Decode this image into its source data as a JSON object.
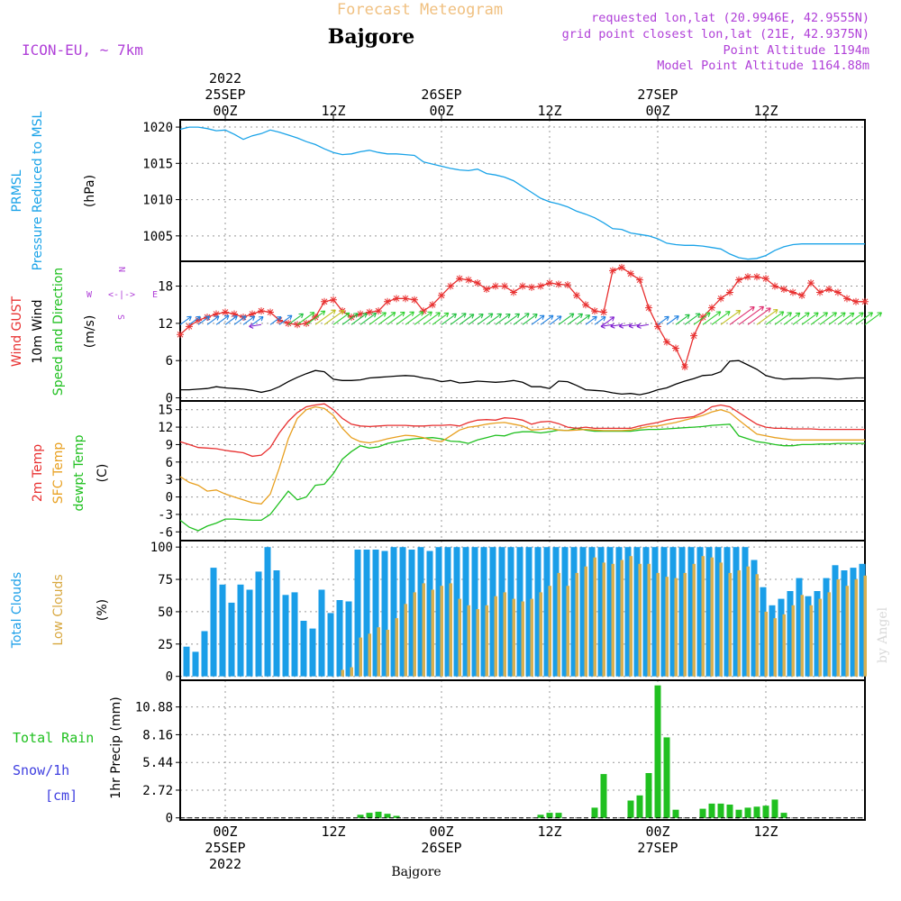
{
  "header": {
    "subtitle": "Forecast Meteogram",
    "station": "Bajgore",
    "model": "ICON-EU, ~ 7km",
    "requested": "requested lon,lat (20.9946E, 42.9555N)",
    "grid_point": "grid point closest lon,lat (21E, 42.9375N)",
    "point_altitude": "Point Altitude 1194m",
    "model_altitude": "Model Point Altitude 1164.88m",
    "footer_station": "Bajgore",
    "watermark": "by Angel"
  },
  "time_axis": {
    "top_year": "2022",
    "ticks": [
      {
        "hour": 0,
        "label": "00Z",
        "day": "25SEP",
        "year": "2022"
      },
      {
        "hour": 12,
        "label": "12Z",
        "day": "",
        "year": ""
      },
      {
        "hour": 24,
        "label": "00Z",
        "day": "26SEP",
        "year": ""
      },
      {
        "hour": 36,
        "label": "12Z",
        "day": "",
        "year": ""
      },
      {
        "hour": 48,
        "label": "00Z",
        "day": "27SEP",
        "year": ""
      },
      {
        "hour": 60,
        "label": "12Z",
        "day": "",
        "year": ""
      }
    ],
    "range_hours": [
      -5,
      71
    ]
  },
  "colors": {
    "pressure": "#1aa3e8",
    "gust": "#e83030",
    "wind": "#000000",
    "temp": "#e83030",
    "sfc": "#e8a020",
    "dewpt": "#20c020",
    "total_cloud": "#1a9ee8",
    "low_cloud": "#d8b050",
    "precip": "#20c020",
    "snow": "#4040e0",
    "purple": "#b040d8",
    "title_orange": "#f0c080"
  },
  "chart_data": [
    {
      "type": "line",
      "panel": "pressure",
      "ylabel_1": "PRMSL",
      "ylabel_2": "Pressure Reduced to MSL",
      "unit": "(hPa)",
      "ylim": [
        1001.5,
        1021
      ],
      "yticks": [
        "1005",
        "1010",
        "1015",
        "1020"
      ],
      "ytick_values": [
        1005,
        1010,
        1015,
        1020
      ],
      "x": [
        -5,
        -4,
        -3,
        -2,
        -1,
        0,
        1,
        2,
        3,
        4,
        5,
        6,
        7,
        8,
        9,
        10,
        11,
        12,
        13,
        14,
        15,
        16,
        17,
        18,
        19,
        20,
        21,
        22,
        23,
        24,
        25,
        26,
        27,
        28,
        29,
        30,
        31,
        32,
        33,
        34,
        35,
        36,
        37,
        38,
        39,
        40,
        41,
        42,
        43,
        44,
        45,
        46,
        47,
        48,
        49,
        50,
        51,
        52,
        53,
        54,
        55,
        56,
        57,
        58,
        59,
        60,
        61,
        62,
        63,
        64,
        65,
        66,
        67,
        68,
        69,
        70,
        71
      ],
      "values": [
        1019.7,
        1020.0,
        1020.0,
        1019.8,
        1019.5,
        1019.6,
        1019.0,
        1018.3,
        1018.8,
        1019.1,
        1019.6,
        1019.3,
        1018.9,
        1018.5,
        1018.0,
        1017.6,
        1017.0,
        1016.5,
        1016.2,
        1016.3,
        1016.6,
        1016.8,
        1016.5,
        1016.3,
        1016.3,
        1016.2,
        1016.1,
        1015.2,
        1014.9,
        1014.6,
        1014.3,
        1014.1,
        1014.0,
        1014.2,
        1013.6,
        1013.4,
        1013.1,
        1012.6,
        1011.8,
        1011.0,
        1010.2,
        1009.7,
        1009.4,
        1009.0,
        1008.4,
        1008.0,
        1007.5,
        1006.8,
        1006.0,
        1005.9,
        1005.4,
        1005.2,
        1005.0,
        1004.6,
        1004.0,
        1003.8,
        1003.7,
        1003.7,
        1003.6,
        1003.4,
        1003.2,
        1002.5,
        1002.0,
        1001.8,
        1001.9,
        1002.3,
        1003.0,
        1003.5,
        1003.8,
        1003.9,
        1003.9,
        1003.9,
        1003.9,
        1003.9,
        1003.9,
        1003.9,
        1003.9
      ]
    },
    {
      "type": "line",
      "panel": "wind",
      "ylabel_1": "Wind GUST",
      "ylabel_2": "10m Wind",
      "ylabel_3": "Speed and Direction",
      "unit": "(m/s)",
      "compass": "N W <-|-> E S",
      "ylim": [
        -0.5,
        22
      ],
      "yticks": [
        "0",
        "6",
        "12",
        "18"
      ],
      "ytick_values": [
        0,
        6,
        12,
        18
      ],
      "x": [
        -5,
        -4,
        -3,
        -2,
        -1,
        0,
        1,
        2,
        3,
        4,
        5,
        6,
        7,
        8,
        9,
        10,
        11,
        12,
        13,
        14,
        15,
        16,
        17,
        18,
        19,
        20,
        21,
        22,
        23,
        24,
        25,
        26,
        27,
        28,
        29,
        30,
        31,
        32,
        33,
        34,
        35,
        36,
        37,
        38,
        39,
        40,
        41,
        42,
        43,
        44,
        45,
        46,
        47,
        48,
        49,
        50,
        51,
        52,
        53,
        54,
        55,
        56,
        57,
        58,
        59,
        60,
        61,
        62,
        63,
        64,
        65,
        66,
        67,
        68,
        69,
        70,
        71
      ],
      "gust": [
        10.2,
        11.5,
        12.5,
        13.0,
        13.5,
        13.8,
        13.5,
        13.0,
        13.5,
        14.0,
        13.8,
        12.5,
        12.0,
        11.8,
        12.0,
        13.0,
        15.5,
        15.8,
        14.0,
        13.0,
        13.5,
        13.8,
        14.0,
        15.5,
        16.0,
        16.0,
        15.8,
        14.0,
        15.0,
        16.5,
        18.0,
        19.2,
        19.0,
        18.5,
        17.5,
        18.0,
        18.0,
        17.0,
        18.0,
        17.8,
        18.0,
        18.5,
        18.3,
        18.2,
        16.5,
        15.0,
        14.0,
        13.8,
        20.5,
        21.0,
        20.0,
        19.0,
        14.5,
        11.5,
        9.0,
        8.0,
        5.0,
        10.0,
        13.0,
        14.5,
        16.0,
        17.0,
        19.0,
        19.5,
        19.5,
        19.2,
        18.0,
        17.5,
        17.0,
        16.5,
        18.5,
        17.0,
        17.5,
        17.0,
        16.0,
        15.5,
        15.5
      ],
      "speed": [
        1.3,
        1.3,
        1.4,
        1.5,
        1.8,
        1.6,
        1.5,
        1.4,
        1.2,
        0.9,
        1.2,
        1.8,
        2.6,
        3.3,
        3.9,
        4.4,
        4.2,
        3.0,
        2.8,
        2.8,
        2.9,
        3.2,
        3.3,
        3.4,
        3.5,
        3.6,
        3.5,
        3.2,
        3.0,
        2.6,
        2.8,
        2.4,
        2.5,
        2.7,
        2.6,
        2.5,
        2.6,
        2.8,
        2.5,
        1.8,
        1.8,
        1.5,
        2.7,
        2.6,
        2.0,
        1.3,
        1.2,
        1.1,
        0.8,
        0.6,
        0.7,
        0.5,
        0.8,
        1.3,
        1.6,
        2.2,
        2.7,
        3.1,
        3.6,
        3.7,
        4.2,
        5.9,
        6.0,
        5.3,
        4.6,
        3.6,
        3.2,
        3.0,
        3.1,
        3.1,
        3.2,
        3.2,
        3.1,
        3.0,
        3.1,
        3.2,
        3.2
      ]
    },
    {
      "type": "line",
      "panel": "temperature",
      "ylabel_1": "2m Temp",
      "ylabel_2": "SFC Temp",
      "ylabel_3": "dewpt Temp",
      "unit": "(C)",
      "ylim": [
        -7.5,
        16.5
      ],
      "yticks": [
        "-6",
        "-3",
        "0",
        "3",
        "6",
        "9",
        "12",
        "15"
      ],
      "ytick_values": [
        -6,
        -3,
        0,
        3,
        6,
        9,
        12,
        15
      ],
      "x": [
        -5,
        -4,
        -3,
        -2,
        -1,
        0,
        1,
        2,
        3,
        4,
        5,
        6,
        7,
        8,
        9,
        10,
        11,
        12,
        13,
        14,
        15,
        16,
        17,
        18,
        19,
        20,
        21,
        22,
        23,
        24,
        25,
        26,
        27,
        28,
        29,
        30,
        31,
        32,
        33,
        34,
        35,
        36,
        37,
        38,
        39,
        40,
        41,
        42,
        43,
        44,
        45,
        46,
        47,
        48,
        49,
        50,
        51,
        52,
        53,
        54,
        55,
        56,
        57,
        58,
        59,
        60,
        61,
        62,
        63,
        64,
        65,
        66,
        67,
        68,
        69,
        70,
        71
      ],
      "temp_2m": [
        9.5,
        9.0,
        8.5,
        8.4,
        8.3,
        8.0,
        7.8,
        7.6,
        7.0,
        7.2,
        8.5,
        11.0,
        13.0,
        14.5,
        15.5,
        15.8,
        16.0,
        15.0,
        13.5,
        12.5,
        12.2,
        12.1,
        12.2,
        12.3,
        12.3,
        12.3,
        12.2,
        12.2,
        12.3,
        12.3,
        12.4,
        12.2,
        12.8,
        13.2,
        13.3,
        13.2,
        13.6,
        13.5,
        13.2,
        12.5,
        12.9,
        13.0,
        12.6,
        12.0,
        11.8,
        12.0,
        11.8,
        11.8,
        11.8,
        11.8,
        11.8,
        12.2,
        12.5,
        12.8,
        13.2,
        13.5,
        13.6,
        13.8,
        14.5,
        15.5,
        15.8,
        15.5,
        14.5,
        13.5,
        12.5,
        12.0,
        11.8,
        11.8,
        11.7,
        11.7,
        11.7,
        11.6,
        11.6,
        11.6,
        11.6,
        11.6,
        11.6
      ],
      "temp_sfc": [
        3.5,
        2.5,
        2.0,
        1.0,
        1.2,
        0.5,
        0.0,
        -0.5,
        -1.0,
        -1.2,
        0.5,
        5.0,
        10.0,
        13.5,
        15.0,
        15.5,
        15.2,
        14.0,
        11.8,
        10.2,
        9.5,
        9.3,
        9.6,
        10.0,
        10.3,
        10.6,
        10.5,
        10.2,
        9.7,
        9.5,
        10.5,
        11.5,
        12.0,
        12.2,
        12.5,
        12.7,
        12.8,
        12.5,
        12.2,
        11.5,
        11.6,
        11.8,
        11.5,
        11.4,
        11.5,
        11.6,
        11.5,
        11.4,
        11.4,
        11.4,
        11.5,
        11.8,
        12.1,
        12.2,
        12.5,
        12.8,
        13.2,
        13.6,
        14.0,
        14.6,
        15.0,
        14.5,
        13.2,
        12.0,
        10.8,
        10.5,
        10.2,
        10.0,
        9.8,
        9.8,
        9.8,
        9.8,
        9.8,
        9.8,
        9.8,
        9.8,
        9.8
      ],
      "dewpoint": [
        -4.0,
        -5.2,
        -5.8,
        -5.0,
        -4.5,
        -3.8,
        -3.8,
        -3.9,
        -4.0,
        -4.0,
        -3.0,
        -1.0,
        1.0,
        -0.5,
        0.0,
        2.0,
        2.2,
        4.0,
        6.5,
        7.8,
        8.8,
        8.4,
        8.6,
        9.2,
        9.5,
        9.8,
        10.0,
        10.1,
        10.2,
        10.0,
        9.6,
        9.5,
        9.2,
        9.8,
        10.2,
        10.6,
        10.5,
        11.0,
        11.2,
        11.2,
        11.0,
        11.2,
        11.5,
        11.4,
        11.8,
        11.5,
        11.3,
        11.3,
        11.3,
        11.3,
        11.3,
        11.5,
        11.6,
        11.6,
        11.7,
        11.8,
        11.9,
        12.0,
        12.1,
        12.3,
        12.4,
        12.5,
        10.5,
        10.0,
        9.5,
        9.3,
        9.0,
        8.8,
        8.8,
        9.0,
        9.0,
        9.1,
        9.1,
        9.2,
        9.2,
        9.2,
        9.2
      ]
    },
    {
      "type": "bar",
      "panel": "clouds",
      "ylabel_1": "Total Clouds",
      "ylabel_2": "Low Clouds",
      "unit": "(%)",
      "ylim": [
        -3,
        105
      ],
      "yticks": [
        "0",
        "25",
        "50",
        "75",
        "100"
      ],
      "ytick_values": [
        0,
        25,
        50,
        75,
        100
      ],
      "x": [
        -4,
        -3,
        -2,
        -1,
        0,
        1,
        2,
        3,
        4,
        5,
        6,
        7,
        8,
        9,
        10,
        11,
        12,
        13,
        14,
        15,
        16,
        17,
        18,
        19,
        20,
        21,
        22,
        23,
        24,
        25,
        26,
        27,
        28,
        29,
        30,
        31,
        32,
        33,
        34,
        35,
        36,
        37,
        38,
        39,
        40,
        41,
        42,
        43,
        44,
        45,
        46,
        47,
        48,
        49,
        50,
        51,
        52,
        53,
        54,
        55,
        56,
        57,
        58,
        59,
        60,
        61,
        62,
        63,
        64,
        65,
        66,
        67,
        68,
        69,
        70,
        71
      ],
      "total": [
        23,
        19,
        35,
        84,
        71,
        57,
        71,
        67,
        81,
        100,
        82,
        63,
        65,
        43,
        37,
        67,
        49,
        59,
        58,
        98,
        98,
        98,
        97,
        100,
        100,
        98,
        100,
        97,
        100,
        100,
        100,
        100,
        100,
        100,
        100,
        100,
        100,
        100,
        100,
        100,
        100,
        100,
        100,
        100,
        100,
        100,
        100,
        100,
        100,
        100,
        100,
        100,
        100,
        100,
        100,
        100,
        100,
        100,
        100,
        100,
        100,
        100,
        100,
        90,
        69,
        55,
        60,
        66,
        76,
        62,
        66,
        76,
        86,
        82,
        84,
        87
      ],
      "low": [
        0,
        0,
        0,
        0,
        0,
        0,
        0,
        0,
        0,
        0,
        0,
        0,
        0,
        0,
        0,
        0,
        0,
        5,
        7,
        30,
        33,
        38,
        36,
        45,
        56,
        65,
        72,
        67,
        70,
        72,
        60,
        55,
        52,
        55,
        62,
        65,
        60,
        58,
        60,
        65,
        70,
        80,
        70,
        80,
        85,
        92,
        88,
        87,
        90,
        93,
        87,
        87,
        80,
        77,
        76,
        80,
        87,
        93,
        92,
        88,
        80,
        82,
        85,
        79,
        50,
        45,
        48,
        55,
        63,
        55,
        60,
        65,
        75,
        70,
        75,
        78
      ]
    },
    {
      "type": "bar",
      "panel": "precip",
      "label_rain": "Total Rain",
      "label_snow": "Snow/1h",
      "label_cm": "[cm]",
      "unit": "1hr Precip (mm)",
      "ylim": [
        -0.2,
        13.5
      ],
      "yticks": [
        "0",
        "2.72",
        "5.44",
        "8.16",
        "10.88"
      ],
      "ytick_values": [
        0,
        2.72,
        5.44,
        8.16,
        10.88
      ],
      "x": [
        -4,
        -3,
        -2,
        -1,
        0,
        1,
        2,
        3,
        4,
        5,
        6,
        7,
        8,
        9,
        10,
        11,
        12,
        13,
        14,
        15,
        16,
        17,
        18,
        19,
        20,
        21,
        22,
        23,
        24,
        25,
        26,
        27,
        28,
        29,
        30,
        31,
        32,
        33,
        34,
        35,
        36,
        37,
        38,
        39,
        40,
        41,
        42,
        43,
        44,
        45,
        46,
        47,
        48,
        49,
        50,
        51,
        52,
        53,
        54,
        55,
        56,
        57,
        58,
        59,
        60,
        61,
        62,
        63,
        64,
        65,
        66,
        67,
        68,
        69,
        70,
        71
      ],
      "values": [
        0,
        0,
        0,
        0,
        0,
        0,
        0,
        0,
        0,
        0,
        0,
        0,
        0,
        0,
        0,
        0,
        0,
        0,
        0,
        0.3,
        0.5,
        0.6,
        0.4,
        0.2,
        0,
        0,
        0,
        0,
        0,
        0,
        0,
        0,
        0,
        0,
        0,
        0,
        0,
        0,
        0,
        0.3,
        0.5,
        0.5,
        0,
        0,
        0,
        1.0,
        4.3,
        0,
        0,
        1.7,
        2.2,
        4.4,
        13.0,
        7.9,
        0.8,
        0,
        0,
        0.9,
        1.4,
        1.4,
        1.3,
        0.8,
        1.0,
        1.1,
        1.2,
        1.8,
        0.5,
        0,
        0,
        0,
        0,
        0,
        0,
        0,
        0,
        0
      ],
      "snow": [
        0,
        0,
        0,
        0,
        0,
        0,
        0,
        0,
        0,
        0,
        0,
        0,
        0,
        0,
        0,
        0,
        0,
        0,
        0,
        0,
        0,
        0,
        0,
        0,
        0,
        0,
        0,
        0,
        0,
        0,
        0,
        0,
        0,
        0,
        0,
        0,
        0,
        0,
        0,
        0,
        0,
        0,
        0,
        0,
        0,
        0,
        0,
        0,
        0,
        0,
        0,
        0,
        0,
        0,
        0,
        0,
        0,
        0,
        0,
        0,
        0,
        0,
        0,
        0,
        0,
        0,
        0,
        0,
        0,
        0,
        0,
        0,
        0,
        0,
        0,
        0
      ]
    }
  ]
}
